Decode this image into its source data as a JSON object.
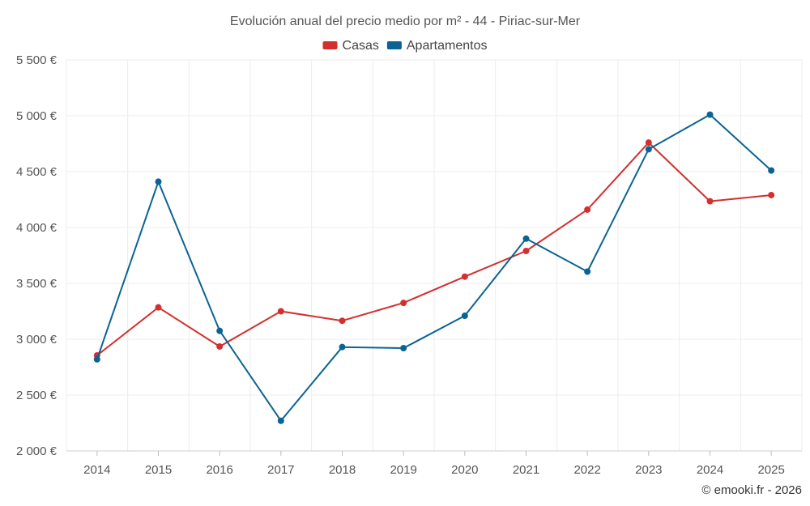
{
  "chart_data": {
    "type": "line",
    "title": "Evolución anual del precio medio por m² - 44 - Piriac-sur-Mer",
    "categories": [
      "2014",
      "2015",
      "2016",
      "2017",
      "2018",
      "2019",
      "2020",
      "2021",
      "2022",
      "2023",
      "2024",
      "2025"
    ],
    "ylim": [
      2000,
      5500
    ],
    "yticks": [
      2000,
      2500,
      3000,
      3500,
      4000,
      4500,
      5000,
      5500
    ],
    "ytick_labels": [
      "2 000 €",
      "2 500 €",
      "3 000 €",
      "3 500 €",
      "4 000 €",
      "4 500 €",
      "5 000 €",
      "5 500 €"
    ],
    "grid": true,
    "legend_position": "top-center",
    "series": [
      {
        "name": "Casas",
        "color": "#d32f2f",
        "values": [
          2855,
          3285,
          2935,
          3250,
          3165,
          3325,
          3560,
          3790,
          4160,
          4760,
          4235,
          4290
        ]
      },
      {
        "name": "Apartamentos",
        "color": "#0b6394",
        "values": [
          2820,
          4410,
          3075,
          2270,
          2930,
          2920,
          3210,
          3900,
          3605,
          4700,
          5010,
          4510
        ]
      }
    ]
  },
  "credit": "© emooki.fr - 2026"
}
